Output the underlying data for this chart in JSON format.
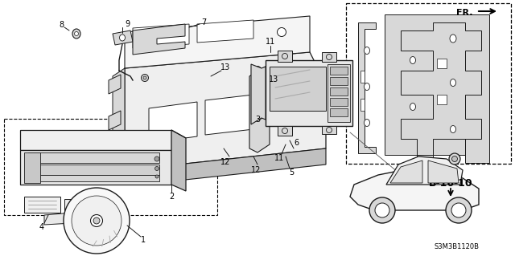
{
  "bg_color": "#ffffff",
  "line_color": "#1a1a1a",
  "fig_width": 6.4,
  "fig_height": 3.19,
  "dpi": 100,
  "ref_label": "B-16-10",
  "fr_label": "FR.",
  "diagram_code": "S3M3B1120B",
  "gray_light": "#d8d8d8",
  "gray_mid": "#c0c0c0",
  "gray_dark": "#a0a0a0"
}
